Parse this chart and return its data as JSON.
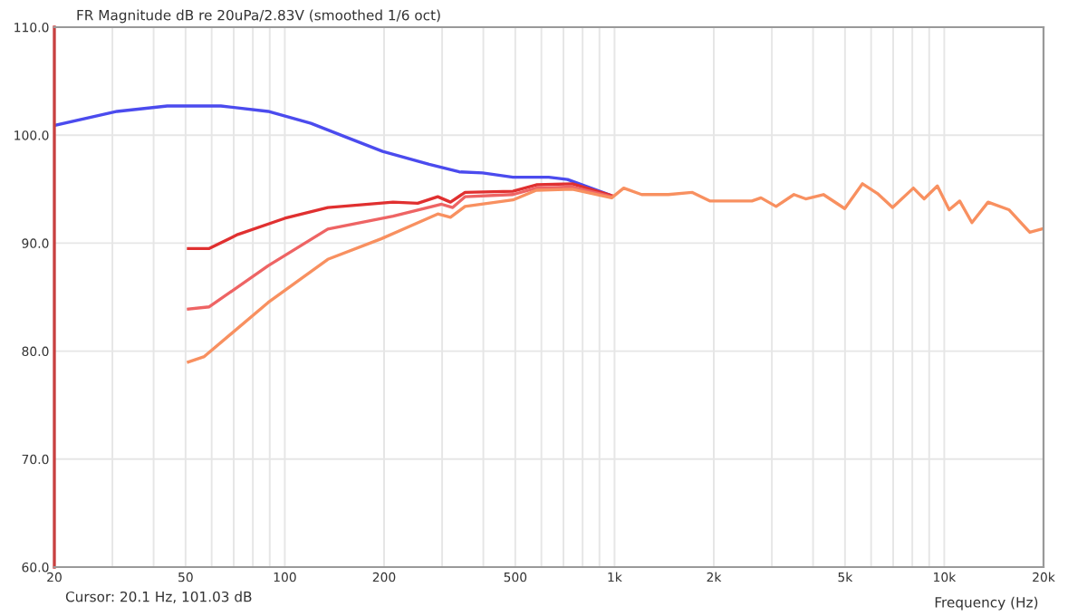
{
  "chart_data": {
    "type": "line",
    "title": "FR Magnitude dB re 20uPa/2.83V (smoothed 1/6 oct)",
    "xlabel": "Frequency (Hz)",
    "annotations": [
      "Cursor: 20.1 Hz, 101.03 dB"
    ],
    "log": "x",
    "grid": true,
    "line_style": "solid",
    "xlim": [
      20,
      20000
    ],
    "ylim": [
      60,
      110
    ],
    "xticks": [
      20,
      {
        "value": 30,
        "label": null
      },
      {
        "value": 40,
        "label": null
      },
      50,
      {
        "value": 60,
        "label": null
      },
      {
        "value": 70,
        "label": null
      },
      {
        "value": 80,
        "label": null
      },
      {
        "value": 90,
        "label": null
      },
      100,
      200,
      {
        "value": 300,
        "label": null
      },
      {
        "value": 400,
        "label": null
      },
      500,
      {
        "value": 600,
        "label": null
      },
      {
        "value": 700,
        "label": null
      },
      {
        "value": 800,
        "label": null
      },
      {
        "value": 900,
        "label": null
      },
      {
        "value": 1000,
        "label": "1k"
      },
      {
        "value": 2000,
        "label": "2k"
      },
      {
        "value": 3000,
        "label": null
      },
      {
        "value": 4000,
        "label": null
      },
      {
        "value": 5000,
        "label": "5k"
      },
      {
        "value": 6000,
        "label": null
      },
      {
        "value": 7000,
        "label": null
      },
      {
        "value": 8000,
        "label": null
      },
      {
        "value": 9000,
        "label": null
      },
      {
        "value": 10000,
        "label": "10k"
      },
      {
        "value": 20000,
        "label": "20k"
      }
    ],
    "yticks": [
      {
        "value": 60,
        "label": "60.0"
      },
      {
        "value": 70,
        "label": "70.0"
      },
      {
        "value": 80,
        "label": "80.0"
      },
      {
        "value": 90,
        "label": "90.0"
      },
      {
        "value": 100,
        "label": "100.0"
      },
      {
        "value": 110,
        "label": "110.0"
      }
    ],
    "series": [
      {
        "color": "#4b4bee",
        "x": [
          20,
          31,
          44,
          64,
          89,
          120,
          154,
          198,
          274,
          338,
          398,
          492,
          632,
          720,
          960
        ],
        "values": [
          100.9,
          102.2,
          102.7,
          102.7,
          102.2,
          101.1,
          99.8,
          98.5,
          97.3,
          96.6,
          96.5,
          96.1,
          96.1,
          95.9,
          94.5
        ]
      },
      {
        "color": "#e03030",
        "x": [
          51,
          59,
          72,
          100,
          135,
          213,
          253,
          291,
          318,
          352,
          492,
          579,
          745,
          980
        ],
        "values": [
          89.5,
          89.5,
          90.8,
          92.3,
          93.3,
          93.8,
          93.7,
          94.3,
          93.8,
          94.7,
          94.8,
          95.4,
          95.5,
          94.4
        ]
      },
      {
        "color": "#ee6464",
        "x": [
          51,
          59,
          89,
          135,
          213,
          299,
          323,
          352,
          492,
          579,
          745,
          980
        ],
        "values": [
          83.9,
          84.1,
          87.9,
          91.3,
          92.5,
          93.6,
          93.3,
          94.3,
          94.5,
          95.1,
          95.2,
          94.3
        ]
      },
      {
        "color": "#f89060",
        "x": [
          51,
          57,
          89,
          135,
          196,
          291,
          318,
          352,
          492,
          579,
          745,
          980,
          1066,
          1208,
          1456,
          1722,
          1950,
          2610,
          2780,
          3090,
          3500,
          3800,
          4300,
          4990,
          5650,
          6270,
          6970,
          8060,
          8690,
          9530,
          10350,
          11140,
          12130,
          13580,
          15700,
          18170,
          19760
        ],
        "values": [
          79.0,
          79.5,
          84.5,
          88.5,
          90.4,
          92.7,
          92.4,
          93.4,
          94.0,
          94.9,
          95.0,
          94.2,
          95.1,
          94.5,
          94.5,
          94.7,
          93.9,
          93.9,
          94.2,
          93.4,
          94.5,
          94.1,
          94.5,
          93.2,
          95.5,
          94.6,
          93.3,
          95.1,
          94.1,
          95.3,
          93.1,
          93.9,
          91.9,
          93.8,
          93.1,
          91.0,
          91.3
        ]
      }
    ]
  }
}
